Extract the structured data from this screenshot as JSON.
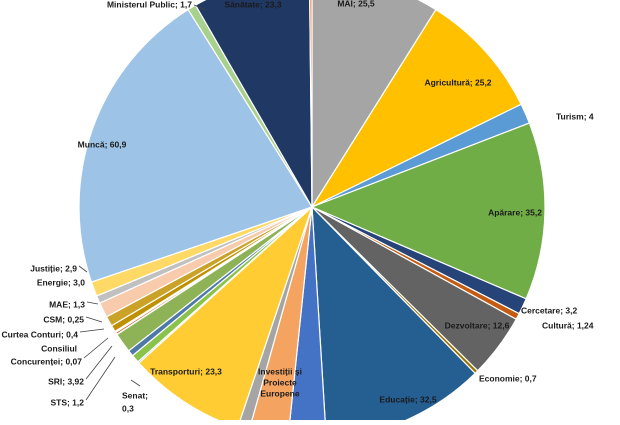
{
  "chart_data": {
    "type": "pie",
    "start": "top",
    "direction": "clockwise",
    "slices": [
      {
        "label": "MAI",
        "value": 25.5,
        "display": "MAI; 25,5",
        "color": "#A5A5A5",
        "label_mode": "inside"
      },
      {
        "label": "Agricultură",
        "value": 25.2,
        "display": "Agricultură; 25,2",
        "color": "#FFC000",
        "label_mode": "inside"
      },
      {
        "label": "Turism",
        "value": 4,
        "display": "Turism; 4",
        "color": "#5B9BD5",
        "label_mode": "outside"
      },
      {
        "label": "Apărare",
        "value": 35.2,
        "display": "Apărare; 35,2",
        "color": "#70AD47",
        "label_mode": "inside"
      },
      {
        "label": "Cercetare",
        "value": 3.2,
        "display": "Cercetare; 3,2",
        "color": "#264478",
        "label_mode": "outside"
      },
      {
        "label": "Cultură",
        "value": 1.24,
        "display": "Cultură; 1,24",
        "color": "#C55A11",
        "label_mode": "outside"
      },
      {
        "label": "Dezvoltare",
        "value": 12.6,
        "display": "Dezvoltare; 12,6",
        "color": "#636363",
        "label_mode": "inside"
      },
      {
        "label": "Economie",
        "value": 0.7,
        "display": "Economie; 0,7",
        "color": "#997300",
        "label_mode": "outside"
      },
      {
        "label": "Educație",
        "value": 32.5,
        "display": "Educație; 32,5",
        "color": "#255E91",
        "label_mode": "inside"
      },
      {
        "label": "Investiții și Proiecte Europene",
        "value": 7.5,
        "display": "Investiții și Proiecte Europene;",
        "color": "#4472C4",
        "label_mode": "none"
      },
      {
        "label": "Investiții și Proiecte Europene",
        "value": 7.8,
        "display": "Investiții și Proiecte Europene;",
        "color": "#F4A460",
        "label_mode": "inside"
      },
      {
        "label": "",
        "value": 2.3,
        "display": "",
        "color": "#A5A5A5",
        "label_mode": "none"
      },
      {
        "label": "Transporturi",
        "value": 23.3,
        "display": "Transporturi; 23,3",
        "color": "#FFCD33",
        "label_mode": "inside"
      },
      {
        "label": "Senat",
        "value": 0.3,
        "display": "Senat; 0,3",
        "color": "#5B9BD5",
        "label_mode": "outside"
      },
      {
        "label": "",
        "value": 1.6,
        "display": "",
        "color": "#8BC34A",
        "label_mode": "none"
      },
      {
        "label": "STS",
        "value": 1.2,
        "display": "STS; 1,2",
        "color": "#4E79A7",
        "label_mode": "outside"
      },
      {
        "label": "SRI",
        "value": 3.92,
        "display": "SRI; 3,92",
        "color": "#8DB356",
        "label_mode": "outside"
      },
      {
        "label": "Consiliul Concurenței",
        "value": 0.07,
        "display": "Consiliul Concurenței; 0,07",
        "color": "#2F5597",
        "label_mode": "outside"
      },
      {
        "label": "Curtea Conturi",
        "value": 0.4,
        "display": "Curtea Conturi; 0,4",
        "color": "#C55A11",
        "label_mode": "outside"
      },
      {
        "label": "CSM",
        "value": 0.25,
        "display": "CSM; 0,25",
        "color": "#7F7F7F",
        "label_mode": "outside"
      },
      {
        "label": "MAE",
        "value": 1.3,
        "display": "MAE; 1,3",
        "color": "#BF9000",
        "label_mode": "outside"
      },
      {
        "label": "",
        "value": 2.0,
        "display": "",
        "color": "#C9A227",
        "label_mode": "none"
      },
      {
        "label": "Energie",
        "value": 3.0,
        "display": "Energie; 3,0",
        "color": "#F8CBAD",
        "label_mode": "outside"
      },
      {
        "label": "",
        "value": 1.5,
        "display": "",
        "color": "#C0C0C0",
        "label_mode": "none"
      },
      {
        "label": "Justiție",
        "value": 2.9,
        "display": "Justiție; 2,9",
        "color": "#FFD966",
        "label_mode": "outside"
      },
      {
        "label": "Muncă",
        "value": 60.9,
        "display": "Muncă; 60,9",
        "color": "#9DC3E6",
        "label_mode": "inside"
      },
      {
        "label": "Ministerul Public",
        "value": 1.7,
        "display": "Ministerul Public; 1,7",
        "color": "#A9D18E",
        "label_mode": "outside"
      },
      {
        "label": "Sănătate",
        "value": 23.3,
        "display": "Sănătate; 23,3",
        "color": "#203864",
        "label_mode": "inside"
      },
      {
        "label": "",
        "value": 0.5,
        "display": "",
        "color": "#ED7D31",
        "label_mode": "none"
      }
    ]
  }
}
